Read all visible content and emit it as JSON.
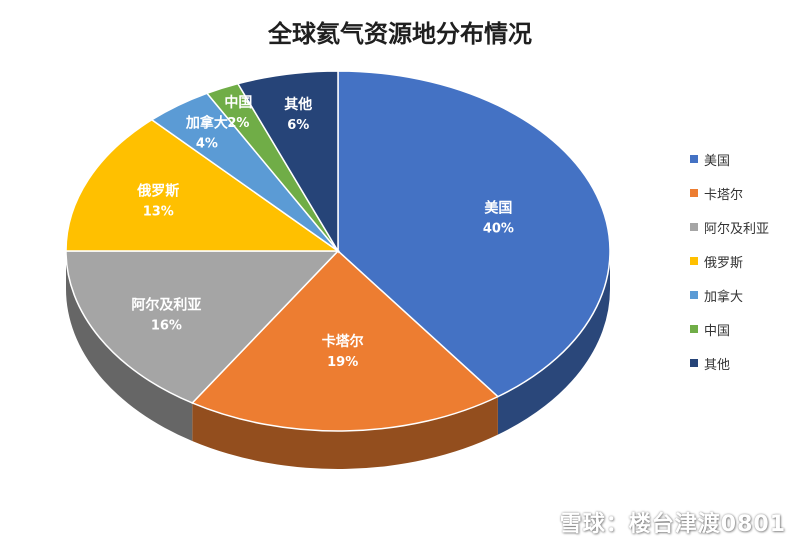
{
  "chart_data": {
    "type": "pie",
    "title": "全球氦气资源地分布情况",
    "categories": [
      "美国",
      "卡塔尔",
      "阿尔及利亚",
      "俄罗斯",
      "加拿大",
      "中国",
      "其他"
    ],
    "values": [
      40,
      19,
      16,
      13,
      4,
      2,
      6
    ],
    "value_labels": [
      "40%",
      "19%",
      "16%",
      "13%",
      "4%",
      "2%",
      "6%"
    ],
    "colors": [
      "#4472C4",
      "#ED7D31",
      "#A5A5A5",
      "#FFC000",
      "#5B9BD5",
      "#70AD47",
      "#264478"
    ],
    "legend_position": "right"
  },
  "watermark": "雪球：楼台津渡0801"
}
